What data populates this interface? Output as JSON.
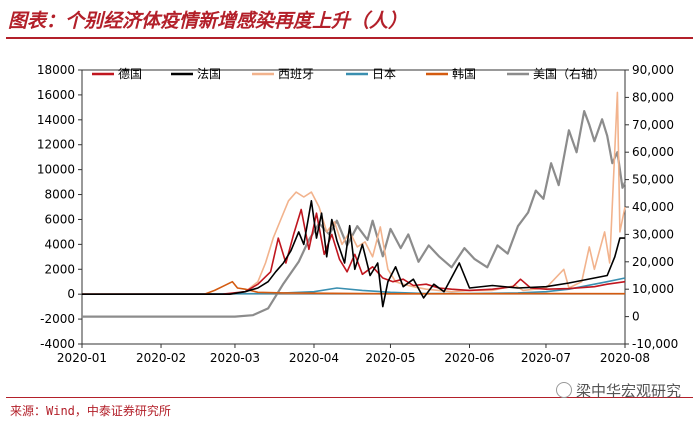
{
  "title": "图表：个别经济体疫情新增感染再度上升（人）",
  "source": "来源：Wind，中泰证券研究所",
  "watermark": "梁中华宏观研究",
  "chart_data": {
    "type": "line",
    "x_tick_labels": [
      "2020-01",
      "2020-02",
      "2020-03",
      "2020-04",
      "2020-05",
      "2020-06",
      "2020-07",
      "2020-08"
    ],
    "x_start": "2020-01-01",
    "x_end": "2020-08-01",
    "y_left": {
      "min": -4000,
      "max": 18000,
      "step": 2000,
      "ticks": [
        "-4000",
        "-2000",
        "0",
        "2000",
        "4000",
        "6000",
        "8000",
        "10000",
        "12000",
        "14000",
        "16000",
        "18000"
      ]
    },
    "y_right": {
      "min": -10000,
      "max": 90000,
      "step": 10000,
      "ticks": [
        "-10,000",
        "0",
        "10,000",
        "20,000",
        "30,000",
        "40,000",
        "50,000",
        "60,000",
        "70,000",
        "80,000",
        "90,000"
      ]
    },
    "legend_position": "top",
    "series": [
      {
        "name": "德国",
        "color": "#c0161f",
        "axis": "left",
        "points": [
          [
            "2020-01-01",
            0
          ],
          [
            "2020-02-25",
            0
          ],
          [
            "2020-03-05",
            200
          ],
          [
            "2020-03-10",
            800
          ],
          [
            "2020-03-15",
            1800
          ],
          [
            "2020-03-18",
            4500
          ],
          [
            "2020-03-21",
            2500
          ],
          [
            "2020-03-24",
            4800
          ],
          [
            "2020-03-27",
            6800
          ],
          [
            "2020-03-30",
            3600
          ],
          [
            "2020-04-02",
            6500
          ],
          [
            "2020-04-05",
            3200
          ],
          [
            "2020-04-08",
            4800
          ],
          [
            "2020-04-11",
            2800
          ],
          [
            "2020-04-14",
            1800
          ],
          [
            "2020-04-17",
            3200
          ],
          [
            "2020-04-20",
            1600
          ],
          [
            "2020-04-24",
            2200
          ],
          [
            "2020-04-28",
            1300
          ],
          [
            "2020-05-02",
            1000
          ],
          [
            "2020-05-06",
            1200
          ],
          [
            "2020-05-10",
            700
          ],
          [
            "2020-05-15",
            800
          ],
          [
            "2020-05-20",
            500
          ],
          [
            "2020-05-25",
            400
          ],
          [
            "2020-06-01",
            300
          ],
          [
            "2020-06-10",
            400
          ],
          [
            "2020-06-18",
            600
          ],
          [
            "2020-06-21",
            1200
          ],
          [
            "2020-06-25",
            500
          ],
          [
            "2020-07-01",
            400
          ],
          [
            "2020-07-10",
            450
          ],
          [
            "2020-07-20",
            600
          ],
          [
            "2020-07-25",
            800
          ],
          [
            "2020-08-01",
            1000
          ]
        ]
      },
      {
        "name": "法国",
        "color": "#000000",
        "axis": "left",
        "points": [
          [
            "2020-01-01",
            0
          ],
          [
            "2020-02-28",
            0
          ],
          [
            "2020-03-05",
            200
          ],
          [
            "2020-03-10",
            500
          ],
          [
            "2020-03-14",
            1000
          ],
          [
            "2020-03-17",
            1800
          ],
          [
            "2020-03-20",
            2500
          ],
          [
            "2020-03-23",
            3500
          ],
          [
            "2020-03-26",
            5000
          ],
          [
            "2020-03-28",
            4000
          ],
          [
            "2020-03-31",
            7500
          ],
          [
            "2020-04-02",
            4500
          ],
          [
            "2020-04-04",
            6500
          ],
          [
            "2020-04-06",
            3000
          ],
          [
            "2020-04-08",
            6000
          ],
          [
            "2020-04-10",
            4300
          ],
          [
            "2020-04-13",
            2500
          ],
          [
            "2020-04-15",
            5500
          ],
          [
            "2020-04-17",
            2000
          ],
          [
            "2020-04-20",
            4000
          ],
          [
            "2020-04-23",
            1500
          ],
          [
            "2020-04-26",
            2500
          ],
          [
            "2020-04-28",
            -1000
          ],
          [
            "2020-04-30",
            1000
          ],
          [
            "2020-05-03",
            2200
          ],
          [
            "2020-05-06",
            600
          ],
          [
            "2020-05-10",
            1200
          ],
          [
            "2020-05-14",
            -300
          ],
          [
            "2020-05-18",
            800
          ],
          [
            "2020-05-22",
            200
          ],
          [
            "2020-05-28",
            2500
          ],
          [
            "2020-06-01",
            500
          ],
          [
            "2020-06-10",
            700
          ],
          [
            "2020-06-20",
            500
          ],
          [
            "2020-07-01",
            600
          ],
          [
            "2020-07-10",
            900
          ],
          [
            "2020-07-20",
            1300
          ],
          [
            "2020-07-25",
            1500
          ],
          [
            "2020-07-28",
            3000
          ],
          [
            "2020-07-30",
            4500
          ],
          [
            "2020-08-01",
            4500
          ]
        ]
      },
      {
        "name": "西班牙",
        "color": "#f2b38d",
        "axis": "left",
        "points": [
          [
            "2020-01-01",
            0
          ],
          [
            "2020-02-28",
            0
          ],
          [
            "2020-03-05",
            200
          ],
          [
            "2020-03-10",
            1000
          ],
          [
            "2020-03-13",
            2500
          ],
          [
            "2020-03-16",
            4500
          ],
          [
            "2020-03-19",
            6000
          ],
          [
            "2020-03-22",
            7500
          ],
          [
            "2020-03-25",
            8200
          ],
          [
            "2020-03-28",
            7800
          ],
          [
            "2020-03-31",
            8200
          ],
          [
            "2020-04-03",
            7000
          ],
          [
            "2020-04-06",
            5000
          ],
          [
            "2020-04-09",
            5800
          ],
          [
            "2020-04-12",
            4000
          ],
          [
            "2020-04-15",
            5000
          ],
          [
            "2020-04-18",
            3800
          ],
          [
            "2020-04-21",
            4200
          ],
          [
            "2020-04-24",
            3000
          ],
          [
            "2020-04-27",
            5400
          ],
          [
            "2020-04-30",
            2000
          ],
          [
            "2020-05-03",
            1000
          ],
          [
            "2020-05-06",
            800
          ],
          [
            "2020-05-10",
            600
          ],
          [
            "2020-05-15",
            400
          ],
          [
            "2020-05-20",
            300
          ],
          [
            "2020-05-25",
            200
          ],
          [
            "2020-06-01",
            300
          ],
          [
            "2020-06-10",
            300
          ],
          [
            "2020-06-19",
            700
          ],
          [
            "2020-06-22",
            300
          ],
          [
            "2020-07-01",
            500
          ],
          [
            "2020-07-08",
            2000
          ],
          [
            "2020-07-10",
            500
          ],
          [
            "2020-07-15",
            1000
          ],
          [
            "2020-07-18",
            3800
          ],
          [
            "2020-07-20",
            2000
          ],
          [
            "2020-07-24",
            5000
          ],
          [
            "2020-07-26",
            2500
          ],
          [
            "2020-07-29",
            16200
          ],
          [
            "2020-07-30",
            5000
          ],
          [
            "2020-08-01",
            7000
          ]
        ]
      },
      {
        "name": "日本",
        "color": "#3a8fb0",
        "axis": "left",
        "points": [
          [
            "2020-01-01",
            0
          ],
          [
            "2020-03-15",
            50
          ],
          [
            "2020-04-01",
            200
          ],
          [
            "2020-04-10",
            500
          ],
          [
            "2020-04-20",
            300
          ],
          [
            "2020-05-01",
            150
          ],
          [
            "2020-05-15",
            50
          ],
          [
            "2020-06-01",
            50
          ],
          [
            "2020-06-20",
            100
          ],
          [
            "2020-07-01",
            200
          ],
          [
            "2020-07-10",
            400
          ],
          [
            "2020-07-20",
            800
          ],
          [
            "2020-07-25",
            1000
          ],
          [
            "2020-08-01",
            1300
          ]
        ]
      },
      {
        "name": "韩国",
        "color": "#d45b10",
        "axis": "left",
        "points": [
          [
            "2020-01-01",
            0
          ],
          [
            "2020-02-18",
            0
          ],
          [
            "2020-02-22",
            300
          ],
          [
            "2020-02-25",
            600
          ],
          [
            "2020-02-29",
            1000
          ],
          [
            "2020-03-02",
            500
          ],
          [
            "2020-03-05",
            400
          ],
          [
            "2020-03-10",
            150
          ],
          [
            "2020-03-20",
            100
          ],
          [
            "2020-04-01",
            80
          ],
          [
            "2020-05-01",
            30
          ],
          [
            "2020-06-01",
            40
          ],
          [
            "2020-07-01",
            50
          ],
          [
            "2020-08-01",
            40
          ]
        ]
      },
      {
        "name": "美国（右轴）",
        "color": "#8c8c8c",
        "axis": "right",
        "points": [
          [
            "2020-01-01",
            0
          ],
          [
            "2020-03-01",
            0
          ],
          [
            "2020-03-08",
            500
          ],
          [
            "2020-03-14",
            3000
          ],
          [
            "2020-03-20",
            12000
          ],
          [
            "2020-03-26",
            20000
          ],
          [
            "2020-03-30",
            28000
          ],
          [
            "2020-04-03",
            34000
          ],
          [
            "2020-04-07",
            30000
          ],
          [
            "2020-04-10",
            35000
          ],
          [
            "2020-04-14",
            26000
          ],
          [
            "2020-04-18",
            33000
          ],
          [
            "2020-04-22",
            28000
          ],
          [
            "2020-04-24",
            35000
          ],
          [
            "2020-04-28",
            22000
          ],
          [
            "2020-05-01",
            32000
          ],
          [
            "2020-05-05",
            25000
          ],
          [
            "2020-05-08",
            30000
          ],
          [
            "2020-05-12",
            20000
          ],
          [
            "2020-05-16",
            26000
          ],
          [
            "2020-05-20",
            22000
          ],
          [
            "2020-05-25",
            18000
          ],
          [
            "2020-05-30",
            25000
          ],
          [
            "2020-06-03",
            21000
          ],
          [
            "2020-06-08",
            18000
          ],
          [
            "2020-06-12",
            26000
          ],
          [
            "2020-06-16",
            23000
          ],
          [
            "2020-06-20",
            33000
          ],
          [
            "2020-06-24",
            38000
          ],
          [
            "2020-06-27",
            46000
          ],
          [
            "2020-06-30",
            43000
          ],
          [
            "2020-07-03",
            56000
          ],
          [
            "2020-07-06",
            48000
          ],
          [
            "2020-07-10",
            68000
          ],
          [
            "2020-07-13",
            60000
          ],
          [
            "2020-07-16",
            75000
          ],
          [
            "2020-07-18",
            70000
          ],
          [
            "2020-07-20",
            64000
          ],
          [
            "2020-07-23",
            72000
          ],
          [
            "2020-07-25",
            66000
          ],
          [
            "2020-07-27",
            56000
          ],
          [
            "2020-07-29",
            60000
          ],
          [
            "2020-07-31",
            47000
          ],
          [
            "2020-08-01",
            49000
          ]
        ]
      }
    ]
  }
}
